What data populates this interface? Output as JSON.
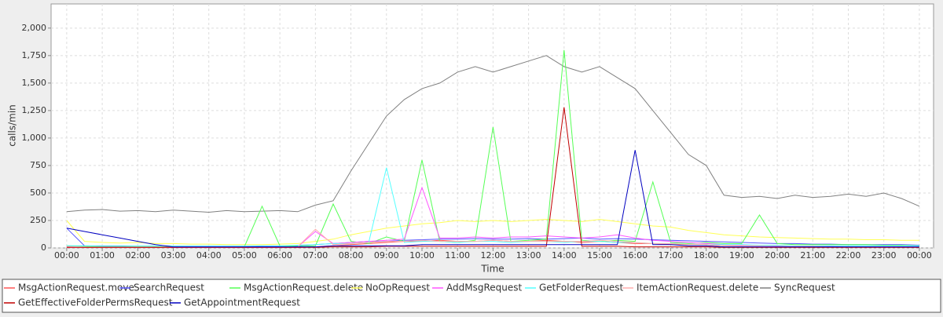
{
  "chart_data": {
    "type": "line",
    "y_label": "calls/min",
    "x_label": "Time",
    "x": [
      0,
      0.5,
      1,
      1.5,
      2,
      2.5,
      3,
      3.5,
      4,
      4.5,
      5,
      5.5,
      6,
      6.5,
      7,
      7.5,
      8,
      8.5,
      9,
      9.5,
      10,
      10.5,
      11,
      11.5,
      12,
      12.5,
      13,
      13.5,
      14,
      14.5,
      15,
      15.5,
      16,
      16.5,
      17,
      17.5,
      18,
      18.5,
      19,
      19.5,
      20,
      20.5,
      21,
      21.5,
      22,
      22.5,
      23,
      23.5,
      24
    ],
    "xlim": [
      -0.44,
      24.4
    ],
    "xticks": [
      {
        "value": 0,
        "label": "00:00"
      },
      {
        "value": 1,
        "label": "01:00"
      },
      {
        "value": 2,
        "label": "02:00"
      },
      {
        "value": 3,
        "label": "03:00"
      },
      {
        "value": 4,
        "label": "04:00"
      },
      {
        "value": 5,
        "label": "05:00"
      },
      {
        "value": 6,
        "label": "06:00"
      },
      {
        "value": 7,
        "label": "07:00"
      },
      {
        "value": 8,
        "label": "08:00"
      },
      {
        "value": 9,
        "label": "09:00"
      },
      {
        "value": 10,
        "label": "10:00"
      },
      {
        "value": 11,
        "label": "11:00"
      },
      {
        "value": 12,
        "label": "12:00"
      },
      {
        "value": 13,
        "label": "13:00"
      },
      {
        "value": 14,
        "label": "14:00"
      },
      {
        "value": 15,
        "label": "15:00"
      },
      {
        "value": 16,
        "label": "16:00"
      },
      {
        "value": 17,
        "label": "17:00"
      },
      {
        "value": 18,
        "label": "18:00"
      },
      {
        "value": 19,
        "label": "19:00"
      },
      {
        "value": 20,
        "label": "20:00"
      },
      {
        "value": 21,
        "label": "21:00"
      },
      {
        "value": 22,
        "label": "22:00"
      },
      {
        "value": 23,
        "label": "23:00"
      },
      {
        "value": 24,
        "label": "00:00"
      }
    ],
    "ylim": [
      0,
      2220
    ],
    "yticks": [
      0,
      250,
      500,
      750,
      {
        "value": 1000,
        "label": "1,000"
      },
      {
        "value": 1250,
        "label": "1,250"
      },
      {
        "value": 1500,
        "label": "1,500"
      },
      {
        "value": 1750,
        "label": "1,750"
      },
      {
        "value": 2000,
        "label": "2,000"
      }
    ],
    "grid": true,
    "legend": "bottom",
    "series": [
      {
        "name": "SyncRequest",
        "color": "#808080",
        "values": [
          330,
          345,
          350,
          335,
          340,
          330,
          345,
          335,
          325,
          340,
          330,
          335,
          340,
          330,
          390,
          430,
          700,
          950,
          1200,
          1350,
          1450,
          1500,
          1600,
          1650,
          1600,
          1650,
          1700,
          1750,
          1650,
          1600,
          1650,
          1550,
          1450,
          1250,
          1050,
          850,
          750,
          480,
          460,
          470,
          450,
          480,
          460,
          470,
          490,
          470,
          500,
          450,
          380
        ]
      },
      {
        "name": "NoOpRequest",
        "color": "#ffff55",
        "values": [
          250,
          60,
          50,
          45,
          50,
          40,
          40,
          35,
          35,
          30,
          30,
          30,
          35,
          40,
          60,
          80,
          120,
          150,
          180,
          200,
          220,
          230,
          250,
          240,
          250,
          240,
          250,
          260,
          250,
          240,
          260,
          240,
          220,
          200,
          190,
          160,
          140,
          120,
          110,
          100,
          95,
          90,
          85,
          80,
          80,
          75,
          75,
          70,
          70
        ]
      },
      {
        "name": "MsgActionRequest.move",
        "color": "#ff5555",
        "values": [
          10,
          5,
          5,
          5,
          5,
          5,
          5,
          5,
          5,
          5,
          5,
          5,
          5,
          5,
          10,
          20,
          30,
          40,
          50,
          60,
          60,
          70,
          60,
          60,
          70,
          60,
          60,
          70,
          60,
          50,
          60,
          50,
          40,
          40,
          30,
          30,
          30,
          20,
          20,
          20,
          15,
          15,
          15,
          10,
          10,
          10,
          10,
          10,
          10
        ]
      },
      {
        "name": "SearchRequest",
        "color": "#5555ff",
        "values": [
          180,
          20,
          15,
          15,
          10,
          10,
          10,
          10,
          10,
          10,
          10,
          15,
          15,
          20,
          30,
          40,
          50,
          60,
          60,
          70,
          75,
          80,
          80,
          85,
          80,
          80,
          85,
          80,
          85,
          90,
          80,
          85,
          80,
          75,
          70,
          65,
          60,
          55,
          50,
          45,
          40,
          40,
          35,
          35,
          30,
          30,
          30,
          30,
          25
        ]
      },
      {
        "name": "MsgActionRequest.delete",
        "color": "#55ff55",
        "values": [
          20,
          15,
          10,
          10,
          10,
          10,
          10,
          5,
          5,
          5,
          10,
          380,
          20,
          15,
          20,
          400,
          60,
          40,
          100,
          60,
          800,
          60,
          50,
          70,
          1100,
          60,
          70,
          80,
          1800,
          70,
          60,
          70,
          60,
          600,
          50,
          40,
          50,
          40,
          40,
          300,
          40,
          30,
          30,
          30,
          30,
          30,
          25,
          25,
          20
        ]
      },
      {
        "name": "AddMsgRequest",
        "color": "#ff55ff",
        "values": [
          5,
          5,
          5,
          5,
          5,
          5,
          5,
          5,
          5,
          5,
          5,
          5,
          5,
          10,
          150,
          40,
          50,
          60,
          70,
          80,
          550,
          90,
          90,
          100,
          90,
          100,
          100,
          110,
          100,
          90,
          100,
          120,
          90,
          70,
          60,
          50,
          40,
          30,
          25,
          20,
          20,
          15,
          15,
          15,
          10,
          10,
          10,
          10,
          10
        ]
      },
      {
        "name": "GetFolderRequest",
        "color": "#55ffff",
        "values": [
          20,
          20,
          20,
          20,
          20,
          20,
          20,
          20,
          20,
          20,
          20,
          20,
          20,
          25,
          30,
          40,
          40,
          50,
          730,
          50,
          60,
          60,
          50,
          60,
          60,
          50,
          60,
          60,
          50,
          60,
          60,
          50,
          50,
          40,
          40,
          30,
          30,
          30,
          30,
          25,
          25,
          20,
          20,
          20,
          20,
          20,
          20,
          20,
          20
        ]
      },
      {
        "name": "ItemActionRequest.delete",
        "color": "#ffafaf",
        "values": [
          5,
          5,
          5,
          5,
          5,
          5,
          5,
          5,
          5,
          5,
          5,
          5,
          5,
          10,
          170,
          30,
          40,
          50,
          60,
          60,
          70,
          60,
          60,
          60,
          70,
          60,
          60,
          60,
          60,
          60,
          70,
          60,
          50,
          40,
          40,
          30,
          30,
          20,
          20,
          20,
          15,
          15,
          15,
          10,
          10,
          10,
          10,
          10,
          10
        ]
      },
      {
        "name": "GetEffectiveFolderPermsRequest",
        "color": "#c00000",
        "values": [
          5,
          5,
          5,
          5,
          5,
          5,
          5,
          5,
          5,
          5,
          5,
          5,
          5,
          5,
          5,
          10,
          10,
          10,
          15,
          15,
          15,
          15,
          15,
          15,
          15,
          15,
          15,
          15,
          1280,
          15,
          15,
          15,
          10,
          10,
          10,
          10,
          10,
          5,
          5,
          5,
          5,
          5,
          5,
          5,
          5,
          5,
          5,
          5,
          5
        ]
      },
      {
        "name": "GetAppointmentRequest",
        "color": "#0000c0",
        "values": [
          180,
          150,
          120,
          90,
          60,
          30,
          10,
          10,
          10,
          10,
          10,
          10,
          10,
          10,
          10,
          20,
          20,
          20,
          20,
          20,
          30,
          30,
          30,
          30,
          30,
          30,
          30,
          30,
          30,
          30,
          30,
          30,
          890,
          30,
          30,
          20,
          20,
          10,
          10,
          10,
          10,
          10,
          10,
          10,
          10,
          10,
          10,
          10,
          10
        ]
      }
    ],
    "legend_order": [
      2,
      3,
      4,
      1,
      5,
      6,
      7,
      0,
      8,
      9
    ]
  }
}
